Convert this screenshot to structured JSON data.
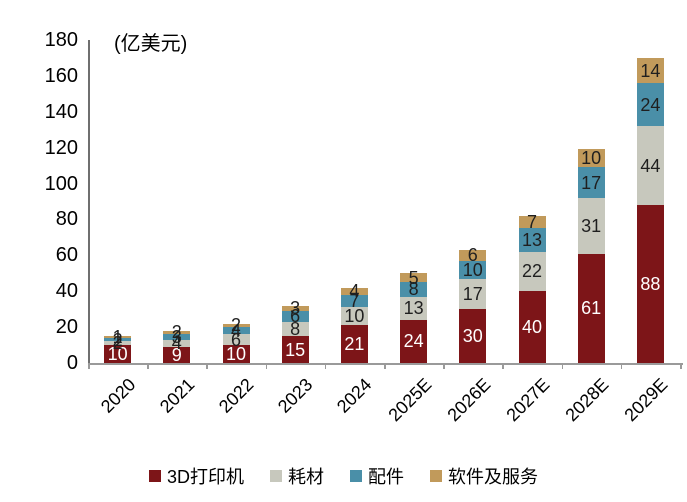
{
  "chart_data": {
    "type": "bar",
    "stacked": true,
    "title": "",
    "unit_label": "(亿美元)",
    "categories": [
      "2020",
      "2021",
      "2022",
      "2023",
      "2024",
      "2025E",
      "2026E",
      "2027E",
      "2028E",
      "2029E"
    ],
    "series": [
      {
        "name": "3D打印机",
        "color": "#7D1518",
        "label_color": "#FFFFFF",
        "values": [
          10,
          9,
          10,
          15,
          21,
          24,
          30,
          40,
          61,
          88
        ]
      },
      {
        "name": "耗材",
        "color": "#C7C8BD",
        "label_color": "#1F1F1F",
        "values": [
          2,
          4,
          6,
          8,
          10,
          13,
          17,
          22,
          31,
          44
        ]
      },
      {
        "name": "配件",
        "color": "#4A8FA8",
        "label_color": "#1F1F1F",
        "values": [
          2,
          3,
          4,
          6,
          7,
          8,
          10,
          13,
          17,
          24
        ]
      },
      {
        "name": "软件及服务",
        "color": "#C19A5B",
        "label_color": "#1F1F1F",
        "values": [
          1,
          2,
          2,
          3,
          4,
          5,
          6,
          7,
          10,
          14
        ]
      }
    ],
    "totals": [
      15,
      18,
      22,
      32,
      42,
      50,
      63,
      82,
      119,
      170
    ],
    "ylim": [
      0,
      180
    ],
    "ytick_step": 20,
    "grid": false,
    "value_labels": true,
    "legend_position": "bottom"
  }
}
